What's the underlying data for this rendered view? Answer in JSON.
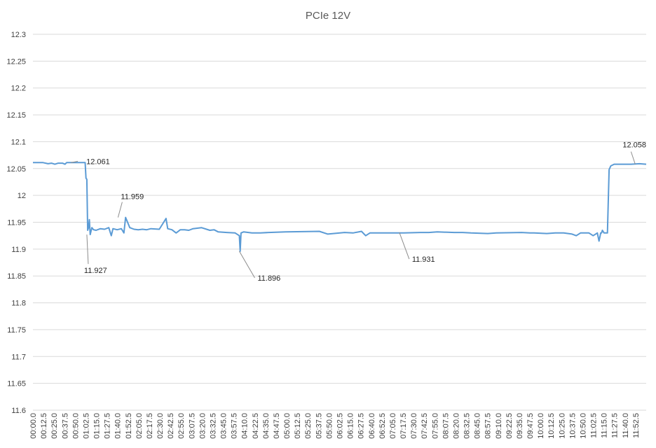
{
  "chart_data": {
    "type": "line",
    "title": "PCIe 12V",
    "xlabel": "",
    "ylabel": "",
    "ylim": [
      11.6,
      12.3
    ],
    "yticks": [
      "11.6",
      "11.65",
      "11.7",
      "11.75",
      "11.8",
      "11.85",
      "11.9",
      "11.95",
      "12",
      "12.05",
      "12.1",
      "12.15",
      "12.2",
      "12.25",
      "12.3"
    ],
    "xlim_seconds": [
      0,
      728
    ],
    "xticks": [
      "00:00.0",
      "00:12.5",
      "00:25.0",
      "00:37.5",
      "00:50.0",
      "01:02.5",
      "01:15.0",
      "01:27.5",
      "01:40.0",
      "01:52.5",
      "02:05.0",
      "02:17.5",
      "02:30.0",
      "02:42.5",
      "02:55.0",
      "03:07.5",
      "03:20.0",
      "03:32.5",
      "03:45.0",
      "03:57.5",
      "04:10.0",
      "04:22.5",
      "04:35.0",
      "04:47.5",
      "05:00.0",
      "05:12.5",
      "05:25.0",
      "05:37.5",
      "05:50.0",
      "06:02.5",
      "06:15.0",
      "06:27.5",
      "06:40.0",
      "06:52.5",
      "07:05.0",
      "07:17.5",
      "07:30.0",
      "07:42.5",
      "07:55.0",
      "08:07.5",
      "08:20.0",
      "08:32.5",
      "08:45.0",
      "08:57.5",
      "09:10.0",
      "09:22.5",
      "09:35.0",
      "09:47.5",
      "10:00.0",
      "10:12.5",
      "10:25.0",
      "10:37.5",
      "10:50.0",
      "11:02.5",
      "11:15.0",
      "11:27.5",
      "11:40.0",
      "11:52.5"
    ],
    "grid": true,
    "legend": "none",
    "series_color": "#5b9bd5",
    "series": [
      {
        "x": [
          0,
          12,
          18,
          22,
          26,
          30,
          35,
          38,
          40,
          50,
          58,
          62,
          63,
          64,
          65,
          66,
          67,
          68,
          70,
          72,
          75,
          80,
          85,
          90,
          93,
          95,
          100,
          105,
          108,
          110,
          115,
          120,
          125,
          130,
          135,
          140,
          150,
          158,
          160,
          165,
          170,
          175,
          180,
          185,
          190,
          200,
          210,
          215,
          220,
          230,
          240,
          245,
          246,
          247,
          250,
          260,
          270,
          280,
          300,
          340,
          350,
          370,
          380,
          390,
          395,
          400,
          440,
          460,
          470,
          480,
          500,
          510,
          520,
          540,
          550,
          580,
          590,
          595,
          610,
          620,
          630,
          640,
          645,
          650,
          655,
          660,
          665,
          670,
          672,
          674,
          675,
          676,
          678,
          679,
          680,
          682,
          684,
          686,
          690,
          695,
          700,
          710,
          720,
          728
        ],
        "y": [
          12.061,
          12.061,
          12.059,
          12.06,
          12.058,
          12.06,
          12.06,
          12.058,
          12.061,
          12.061,
          12.061,
          12.061,
          12.032,
          12.03,
          11.935,
          11.94,
          11.955,
          11.927,
          11.94,
          11.936,
          11.935,
          11.938,
          11.937,
          11.94,
          11.925,
          11.938,
          11.936,
          11.938,
          11.93,
          11.959,
          11.94,
          11.937,
          11.936,
          11.937,
          11.936,
          11.938,
          11.937,
          11.957,
          11.938,
          11.936,
          11.93,
          11.936,
          11.936,
          11.935,
          11.938,
          11.94,
          11.935,
          11.936,
          11.932,
          11.931,
          11.93,
          11.925,
          11.896,
          11.93,
          11.932,
          11.93,
          11.93,
          11.931,
          11.932,
          11.933,
          11.928,
          11.931,
          11.93,
          11.933,
          11.925,
          11.93,
          11.93,
          11.931,
          11.931,
          11.932,
          11.931,
          11.931,
          11.93,
          11.929,
          11.93,
          11.931,
          11.93,
          11.93,
          11.929,
          11.93,
          11.93,
          11.928,
          11.925,
          11.93,
          11.93,
          11.93,
          11.925,
          11.93,
          11.915,
          11.93,
          11.93,
          11.935,
          11.93,
          11.93,
          11.93,
          11.93,
          12.048,
          12.055,
          12.058,
          12.058,
          12.058,
          12.058,
          12.059,
          12.058
        ]
      }
    ],
    "annotations": [
      {
        "label": "12.061",
        "x": 45,
        "y": 12.061
      },
      {
        "label": "11.959",
        "x": 101,
        "y": 11.959
      },
      {
        "label": "11.927",
        "x": 64,
        "y": 11.927
      },
      {
        "label": "11.896",
        "x": 245,
        "y": 11.896
      },
      {
        "label": "11.931",
        "x": 435,
        "y": 11.931
      },
      {
        "label": "12.058",
        "x": 715,
        "y": 12.058
      }
    ]
  }
}
